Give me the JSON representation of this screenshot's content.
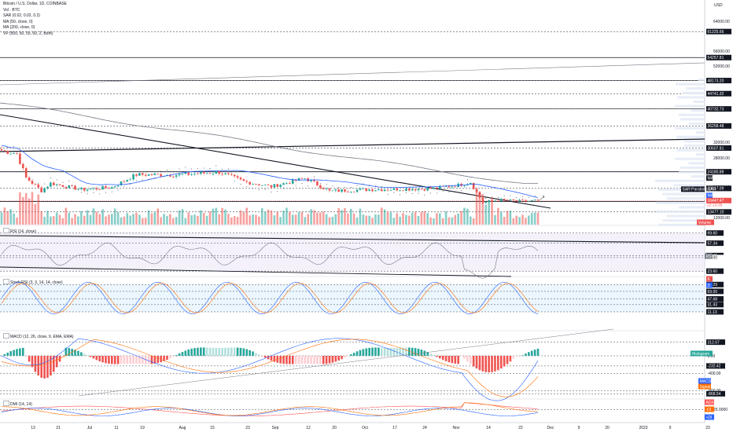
{
  "header": {
    "title": "Bitcoin / U.S. Dollar, 1D, COINBASE",
    "indicators": [
      "Vol · BTC",
      "SAR (0.02, 0.02, 0.2)",
      "MA (50, close, 0)",
      "MA (200, close, 0)",
      "VP (500, 50, 55, 60, 2, Both)"
    ]
  },
  "price_axis": {
    "currency": "USD",
    "ticks": [
      "64000.00",
      "56000.00",
      "52000.00",
      "32000.00",
      "28000.00",
      "20000.00",
      "12000.00"
    ],
    "levels": [
      {
        "label": "61225.66",
        "value": 61225.66
      },
      {
        "label": "54257.81",
        "value": 54257.81
      },
      {
        "label": "48173.20",
        "value": 48173.2
      },
      {
        "label": "44741.32",
        "value": 44741.32
      },
      {
        "label": "40732.73",
        "value": 40732.73
      },
      {
        "label": "36258.48",
        "value": 36258.48
      },
      {
        "label": "30507.81",
        "value": 30507.81
      },
      {
        "label": "24180.88",
        "value": 24180.88
      },
      {
        "label": "19617.09",
        "value": 19617.09
      },
      {
        "label": "13477.10",
        "value": 13477.1
      }
    ],
    "badges": {
      "ma": "MA",
      "ma_value": "MA",
      "sar": "SAR:ParabolicSAR",
      "price": "16447.47",
      "countdown": "22:13:35",
      "volume": "Volume"
    }
  },
  "time_axis": [
    "13",
    "21",
    "Jul",
    "11",
    "19",
    "Aug",
    "15",
    "23",
    "Sep",
    "12",
    "20",
    "Oct",
    "17",
    "24",
    "Nov",
    "14",
    "22",
    "Dec",
    "9",
    "20",
    "2023",
    "9",
    "23"
  ],
  "rsi": {
    "title": "RSI (14, close)",
    "levels": [
      {
        "label": "69.60",
        "value": 69.6
      },
      {
        "label": "57.34",
        "value": 57.34
      },
      {
        "label": "42.41",
        "value": 42.41
      },
      {
        "label": "40.00",
        "value": 40.0
      },
      {
        "label": "23.60",
        "value": 23.6
      }
    ],
    "badge": "RSI"
  },
  "stoch": {
    "title": "Stoch RSI (3, 3, 14, 14, close)",
    "levels": [
      {
        "label": "88.29",
        "value": 88.29
      },
      {
        "label": "69.00",
        "value": 69.0
      },
      {
        "label": "47.68",
        "value": 47.68
      },
      {
        "label": "31.43",
        "value": 31.43
      },
      {
        "label": "11.13",
        "value": 11.13
      }
    ],
    "badges": [
      "K",
      "D"
    ]
  },
  "macd": {
    "title": "MACD (12, 26, close, 9, EMA, EMA)",
    "levels": [
      {
        "label": "312.67",
        "value": 312.67
      },
      {
        "label": "0.00",
        "value": 0
      },
      {
        "label": "-232.42",
        "value": -232.42
      },
      {
        "label": "-400.00",
        "value": -400
      },
      {
        "label": "-800.00",
        "value": -800
      },
      {
        "label": "-868.54",
        "value": -868.54
      }
    ],
    "badges": [
      "Histogram",
      "MACD",
      "Signal"
    ]
  },
  "dmi": {
    "title": "DMI (14, 14)",
    "levels": [
      {
        "label": "25.0000",
        "value": 25
      }
    ],
    "badges": [
      "ADX",
      "-DI",
      "+DI"
    ]
  },
  "colors": {
    "up": "#26a69a",
    "down": "#ef5350",
    "grid": "#e0e3eb",
    "ma50": "#2962ff",
    "ma200": "#787b86",
    "sar": "#131722",
    "rsi": "#7e57c2",
    "stoch_k": "#2962ff",
    "stoch_d": "#ff6d00",
    "macd": "#2962ff",
    "signal": "#ff6d00",
    "adx": "#ff5252",
    "plus_di": "#2962ff",
    "minus_di": "#ff6d00",
    "badge": "#131722",
    "price_badge": "#ef5350",
    "band": "#ede7f6",
    "band_blue": "#e3f2fd"
  },
  "chart_data": {
    "type": "candlestick",
    "title": "Bitcoin / U.S. Dollar, 1D, COINBASE",
    "x_range": [
      "Jun 2022",
      "Jan 2023"
    ],
    "y_range": [
      10000,
      68000
    ],
    "grid": false,
    "last_price": 16447.47,
    "approx_closes": [
      {
        "date": "Jun 5",
        "close": 29900
      },
      {
        "date": "Jun 10",
        "close": 29100
      },
      {
        "date": "Jun 13",
        "close": 22500
      },
      {
        "date": "Jun 18",
        "close": 19000
      },
      {
        "date": "Jun 21",
        "close": 21000
      },
      {
        "date": "Jul 1",
        "close": 19300
      },
      {
        "date": "Jul 11",
        "close": 19900
      },
      {
        "date": "Jul 19",
        "close": 23400
      },
      {
        "date": "Aug 1",
        "close": 23300
      },
      {
        "date": "Aug 15",
        "close": 24100
      },
      {
        "date": "Aug 23",
        "close": 21500
      },
      {
        "date": "Sep 1",
        "close": 20100
      },
      {
        "date": "Sep 12",
        "close": 22400
      },
      {
        "date": "Sep 20",
        "close": 18900
      },
      {
        "date": "Oct 1",
        "close": 19300
      },
      {
        "date": "Oct 17",
        "close": 19500
      },
      {
        "date": "Oct 24",
        "close": 19600
      },
      {
        "date": "Nov 1",
        "close": 20500
      },
      {
        "date": "Nov 5",
        "close": 21300
      },
      {
        "date": "Nov 9",
        "close": 15900
      },
      {
        "date": "Nov 14",
        "close": 16600
      },
      {
        "date": "Nov 22",
        "close": 16200
      },
      {
        "date": "Nov 26",
        "close": 16447.47
      }
    ]
  }
}
